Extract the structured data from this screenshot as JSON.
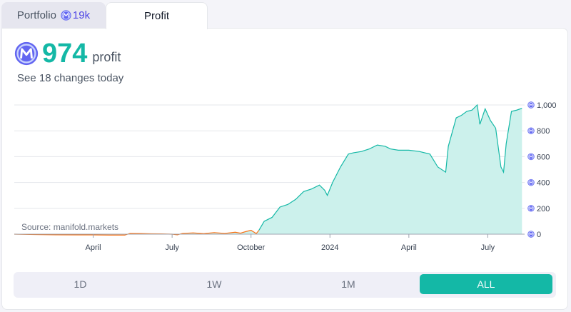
{
  "tabs": {
    "portfolio": {
      "label": "Portfolio",
      "amount": "19k"
    },
    "profit": {
      "label": "Profit"
    }
  },
  "summary": {
    "value": "974",
    "label": "profit",
    "changes": "See 18 changes today"
  },
  "chart_data": {
    "type": "area",
    "source": "Source: manifold.markets",
    "x_ticks": [
      {
        "label": "April",
        "t": 3
      },
      {
        "label": "July",
        "t": 6
      },
      {
        "label": "October",
        "t": 9
      },
      {
        "label": "2024",
        "t": 12
      },
      {
        "label": "April",
        "t": 15
      },
      {
        "label": "July",
        "t": 18
      }
    ],
    "y_ticks": [
      {
        "label": "0",
        "v": 0
      },
      {
        "label": "200",
        "v": 200
      },
      {
        "label": "400",
        "v": 400
      },
      {
        "label": "600",
        "v": 600
      },
      {
        "label": "800",
        "v": 800
      },
      {
        "label": "1,000",
        "v": 1000
      }
    ],
    "ylim": [
      0,
      1000
    ],
    "xlim": [
      0,
      19.4
    ],
    "series": [
      {
        "points": [
          [
            0.0,
            0
          ],
          [
            0.8,
            -3
          ],
          [
            1.6,
            -5
          ],
          [
            2.4,
            -6
          ],
          [
            3.0,
            -6
          ],
          [
            3.6,
            -7
          ],
          [
            4.2,
            -7
          ],
          [
            4.4,
            6
          ],
          [
            4.8,
            5
          ],
          [
            5.2,
            3
          ],
          [
            5.6,
            2
          ],
          [
            6.0,
            0
          ],
          [
            6.2,
            -5
          ],
          [
            6.4,
            6
          ],
          [
            6.8,
            10
          ],
          [
            7.2,
            4
          ],
          [
            7.6,
            12
          ],
          [
            8.0,
            6
          ],
          [
            8.4,
            15
          ],
          [
            8.6,
            8
          ],
          [
            8.8,
            20
          ],
          [
            9.0,
            30
          ],
          [
            9.2,
            5
          ],
          [
            9.3,
            30
          ],
          [
            9.5,
            100
          ],
          [
            9.8,
            130
          ],
          [
            10.1,
            210
          ],
          [
            10.4,
            230
          ],
          [
            10.7,
            270
          ],
          [
            11.0,
            330
          ],
          [
            11.3,
            350
          ],
          [
            11.6,
            380
          ],
          [
            11.8,
            340
          ],
          [
            11.9,
            300
          ],
          [
            12.1,
            400
          ],
          [
            12.4,
            520
          ],
          [
            12.7,
            620
          ],
          [
            12.9,
            630
          ],
          [
            13.2,
            640
          ],
          [
            13.5,
            660
          ],
          [
            13.8,
            690
          ],
          [
            14.1,
            680
          ],
          [
            14.3,
            660
          ],
          [
            14.6,
            650
          ],
          [
            15.0,
            650
          ],
          [
            15.4,
            640
          ],
          [
            15.8,
            620
          ],
          [
            16.1,
            520
          ],
          [
            16.4,
            480
          ],
          [
            16.5,
            680
          ],
          [
            16.8,
            900
          ],
          [
            17.0,
            920
          ],
          [
            17.2,
            950
          ],
          [
            17.4,
            960
          ],
          [
            17.6,
            1000
          ],
          [
            17.7,
            850
          ],
          [
            17.9,
            970
          ],
          [
            18.1,
            880
          ],
          [
            18.3,
            820
          ],
          [
            18.5,
            520
          ],
          [
            18.6,
            480
          ],
          [
            18.7,
            700
          ],
          [
            18.9,
            950
          ],
          [
            19.1,
            960
          ],
          [
            19.3,
            974
          ]
        ]
      }
    ],
    "colors": {
      "positive_line": "#14b8a6",
      "positive_fill": "#ccf1ec",
      "negative_line": "#f97316",
      "grid": "#e5e7eb",
      "coin": "#6366f1"
    }
  },
  "range": {
    "options": [
      {
        "label": "1D",
        "active": false
      },
      {
        "label": "1W",
        "active": false
      },
      {
        "label": "1M",
        "active": false
      },
      {
        "label": "ALL",
        "active": true
      }
    ]
  },
  "icons": {
    "currency": "mana-coin-icon"
  }
}
